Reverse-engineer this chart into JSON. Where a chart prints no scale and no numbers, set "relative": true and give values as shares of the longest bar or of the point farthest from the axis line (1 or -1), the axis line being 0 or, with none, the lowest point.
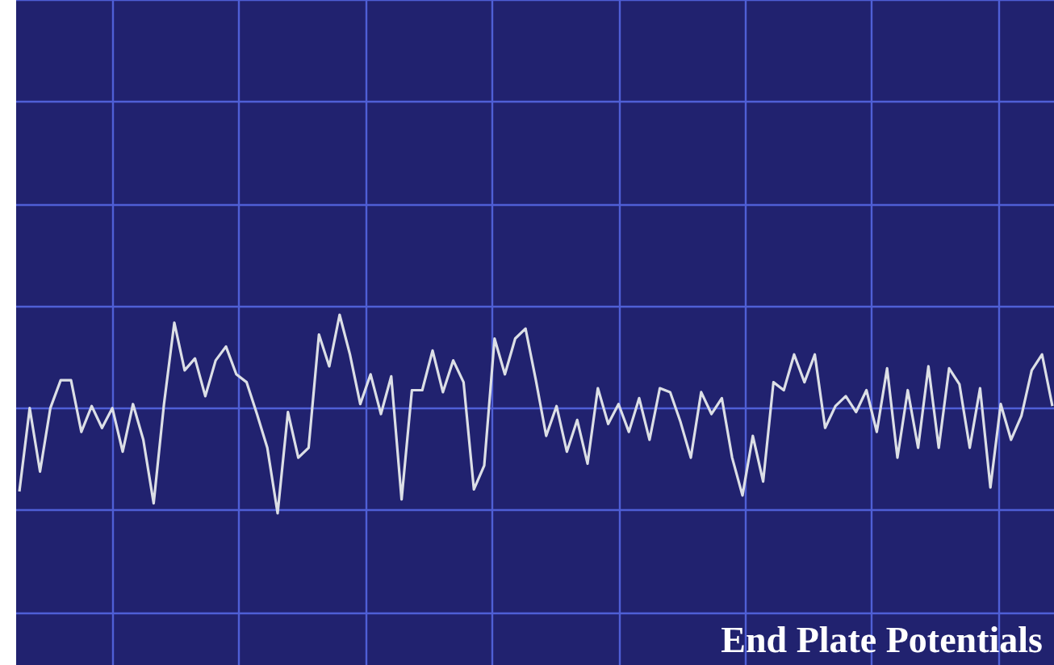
{
  "chart_data": {
    "type": "line",
    "title": "End Plate Potentials",
    "relative": true,
    "grid": true,
    "categories": [
      null,
      null,
      null,
      null,
      null,
      null,
      null,
      null,
      null,
      null,
      null,
      null,
      null,
      null,
      null,
      null,
      null,
      null,
      null,
      null,
      null,
      null,
      null,
      null,
      null,
      null,
      null,
      null,
      null,
      null,
      null,
      null,
      null,
      null,
      null,
      null,
      null,
      null,
      null,
      null,
      null,
      null,
      null,
      null,
      null,
      null,
      null,
      null,
      null,
      null,
      null,
      null,
      null,
      null,
      null,
      null,
      null,
      null,
      null,
      null,
      null,
      null,
      null,
      null,
      null,
      null,
      null,
      null,
      null,
      null,
      null,
      null,
      null,
      null,
      null,
      null,
      null,
      null,
      null,
      null,
      null,
      null,
      null,
      null,
      null,
      null,
      null,
      null,
      null,
      null,
      null,
      null,
      null,
      null,
      null,
      null,
      null,
      null,
      null,
      null,
      null
    ],
    "series": [
      {
        "color": "#dcdfe6",
        "values": [
          0.11,
          0.53,
          0.21,
          0.53,
          0.67,
          0.67,
          0.41,
          0.54,
          0.43,
          0.53,
          0.31,
          0.55,
          0.37,
          0.05,
          0.55,
          0.96,
          0.72,
          0.78,
          0.59,
          0.77,
          0.84,
          0.7,
          0.66,
          0.5,
          0.33,
          0,
          0.51,
          0.28,
          0.33,
          0.9,
          0.74,
          1,
          0.8,
          0.55,
          0.7,
          0.5,
          0.69,
          0.07,
          0.62,
          0.62,
          0.82,
          0.61,
          0.77,
          0.66,
          0.12,
          0.24,
          0.88,
          0.7,
          0.88,
          0.93,
          0.67,
          0.39,
          0.54,
          0.31,
          0.47,
          0.25,
          0.63,
          0.45,
          0.55,
          0.41,
          0.58,
          0.37,
          0.63,
          0.61,
          0.46,
          0.28,
          0.61,
          0.5,
          0.58,
          0.28,
          0.09,
          0.39,
          0.16,
          0.66,
          0.62,
          0.8,
          0.66,
          0.8,
          0.43,
          0.54,
          0.59,
          0.51,
          0.62,
          0.41,
          0.73,
          0.28,
          0.62,
          0.33,
          0.74,
          0.33,
          0.73,
          0.65,
          0.33,
          0.63,
          0.13,
          0.55,
          0.37,
          0.49,
          0.72,
          0.8,
          0.54
        ]
      }
    ]
  }
}
